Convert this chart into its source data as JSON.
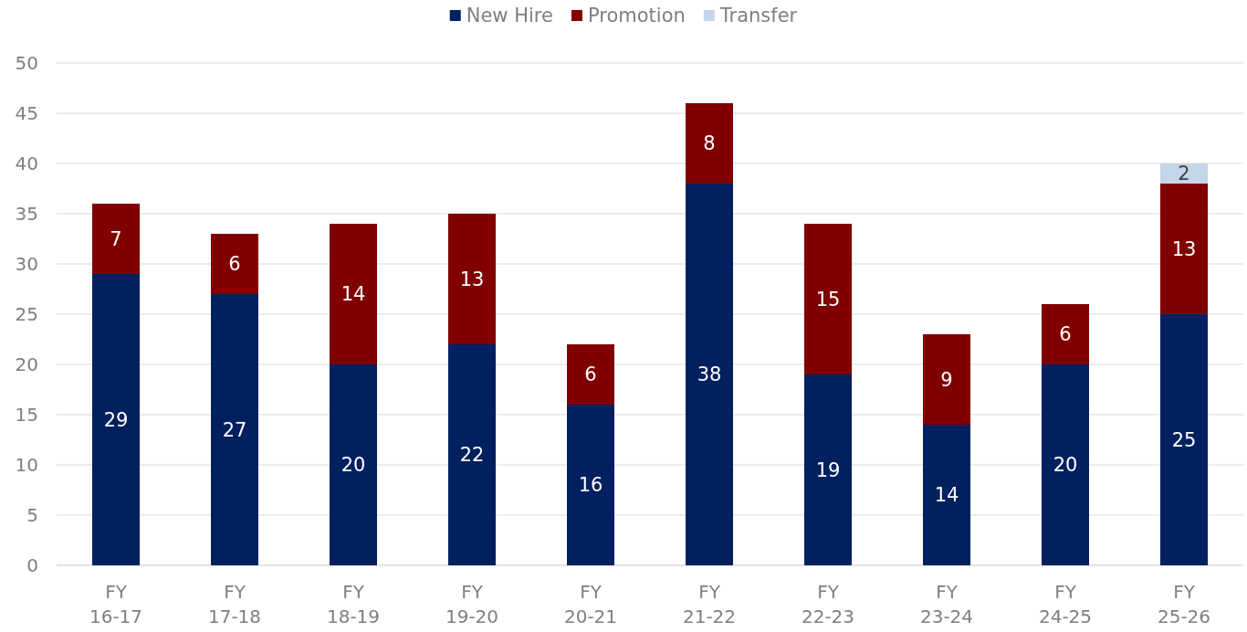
{
  "chart_data": {
    "type": "bar",
    "stacked": true,
    "categories": [
      "FY 16-17",
      "FY 17-18",
      "FY 18-19",
      "FY 19-20",
      "FY 20-21",
      "FY 21-22",
      "FY 22-23",
      "FY 23-24",
      "FY 24-25",
      "FY 25-26"
    ],
    "series": [
      {
        "name": "New Hire",
        "color": "#002060",
        "values": [
          29,
          27,
          20,
          22,
          16,
          38,
          19,
          14,
          20,
          25
        ]
      },
      {
        "name": "Promotion",
        "color": "#800000",
        "values": [
          7,
          6,
          14,
          13,
          6,
          8,
          15,
          9,
          6,
          13
        ]
      },
      {
        "name": "Transfer",
        "color": "#c5d5ea",
        "values": [
          null,
          null,
          null,
          null,
          null,
          null,
          null,
          null,
          null,
          2
        ]
      }
    ],
    "ylim": [
      0,
      50
    ],
    "yticks": [
      0,
      5,
      10,
      15,
      20,
      25,
      30,
      35,
      40,
      45,
      50
    ],
    "grid": "y",
    "legend": "top",
    "data_labels": true
  }
}
